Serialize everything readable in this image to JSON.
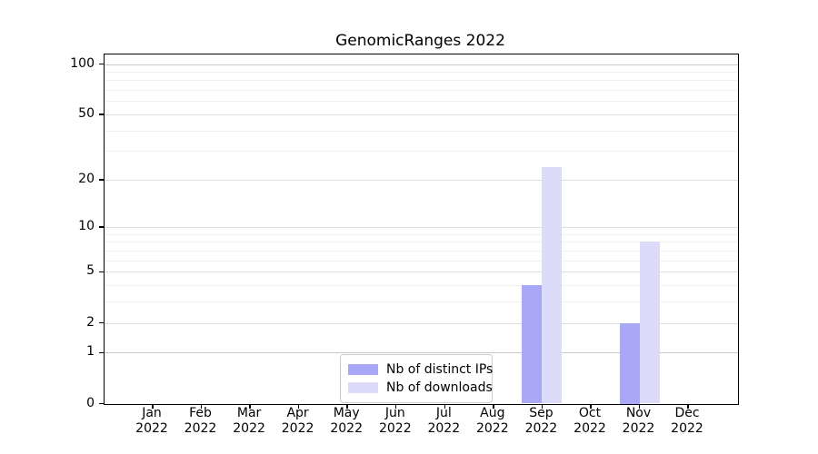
{
  "title": "GenomicRanges 2022",
  "colors": {
    "distinct_ips": "#a8a8f6",
    "downloads": "#dcdcfa",
    "axis": "#000000",
    "grid_major": "#e0e0e0",
    "grid_minor": "#f1f1f1",
    "grid_strong": "#c9c9c9"
  },
  "y_axis": {
    "scale": "log1p",
    "tick_labels": [
      "0",
      "1",
      "2",
      "5",
      "10",
      "20",
      "50",
      "100"
    ],
    "tick_values": [
      0,
      1,
      2,
      5,
      10,
      20,
      50,
      100
    ],
    "minor_values": [
      3,
      4,
      6,
      7,
      8,
      9,
      30,
      40,
      60,
      70,
      80,
      90
    ],
    "strong_values": [
      1,
      100
    ],
    "max": 100
  },
  "x_axis": {
    "months": [
      "Jan",
      "Feb",
      "Mar",
      "Apr",
      "May",
      "Jun",
      "Jul",
      "Aug",
      "Sep",
      "Oct",
      "Nov",
      "Dec"
    ],
    "year": "2022"
  },
  "chart_data": {
    "type": "bar",
    "title": "GenomicRanges 2022",
    "xlabel": "",
    "ylabel": "",
    "y_scale": "log1p",
    "ylim": [
      0,
      100
    ],
    "yticks": [
      0,
      1,
      2,
      5,
      10,
      20,
      50,
      100
    ],
    "grid": true,
    "legend_position": "inside-bottom-center",
    "categories": [
      "Jan 2022",
      "Feb 2022",
      "Mar 2022",
      "Apr 2022",
      "May 2022",
      "Jun 2022",
      "Jul 2022",
      "Aug 2022",
      "Sep 2022",
      "Oct 2022",
      "Nov 2022",
      "Dec 2022"
    ],
    "series": [
      {
        "name": "Nb of distinct IPs",
        "color": "#a8a8f6",
        "values": [
          0,
          0,
          0,
          0,
          0,
          0,
          0,
          0,
          4,
          0,
          2,
          0
        ]
      },
      {
        "name": "Nb of downloads",
        "color": "#dcdcfa",
        "values": [
          0,
          0,
          0,
          0,
          0,
          0,
          0,
          0,
          24,
          0,
          8,
          0
        ]
      }
    ]
  }
}
